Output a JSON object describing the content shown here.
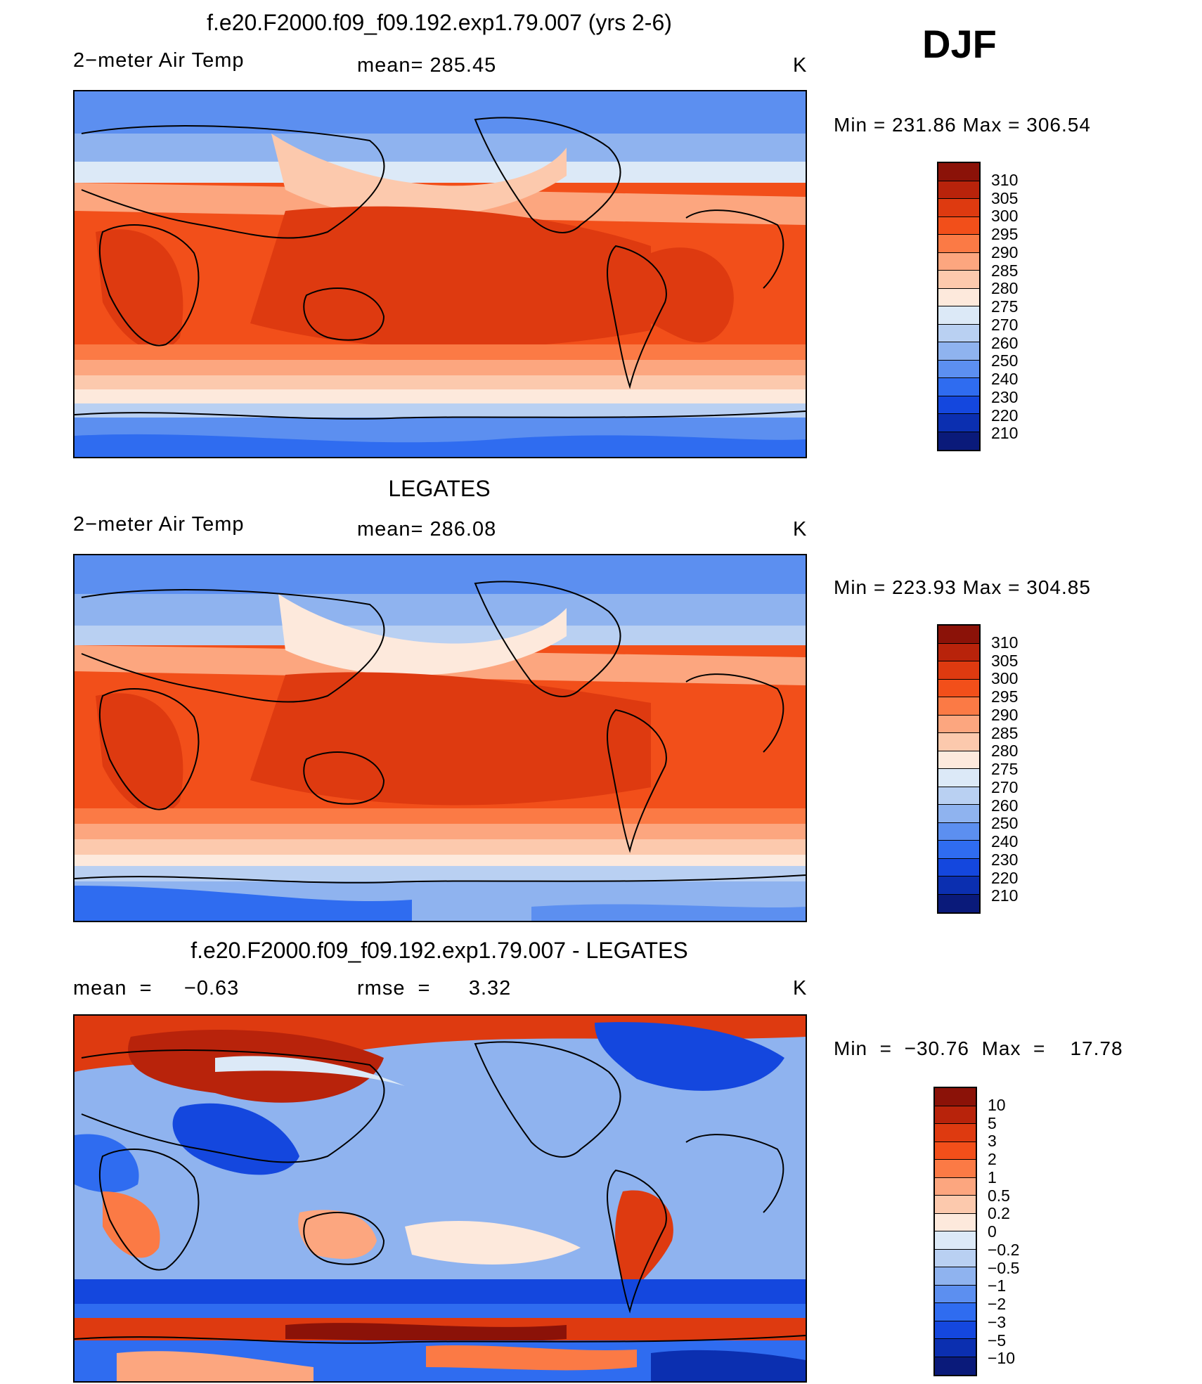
{
  "season": "DJF",
  "panels": [
    {
      "id": "model",
      "title": "f.e20.F2000.f09_f09.192.exp1.79.007 (yrs 2-6)",
      "left_label": "2−meter Air Temp",
      "center_label": "mean=  285.45",
      "units": "K",
      "minmax": "Min  =  231.86  Max  =  306.54",
      "colorbar": {
        "labels": [
          "310",
          "305",
          "300",
          "295",
          "290",
          "285",
          "280",
          "275",
          "270",
          "260",
          "250",
          "240",
          "230",
          "220",
          "210"
        ],
        "colors": [
          "#8b1208",
          "#b8230b",
          "#de3a10",
          "#f24f1a",
          "#fb7a45",
          "#fca67f",
          "#fcc9ad",
          "#fde9dc",
          "#dce9f7",
          "#b9d0f2",
          "#8fb3ef",
          "#5c8ff0",
          "#2f6cf0",
          "#1447de",
          "#0b2fb0",
          "#0a1a7a"
        ]
      }
    },
    {
      "id": "obs",
      "title": "LEGATES",
      "left_label": "2−meter Air Temp",
      "center_label": "mean=  286.08",
      "units": "K",
      "minmax": "Min  =  223.93  Max  =  304.85",
      "colorbar": {
        "labels": [
          "310",
          "305",
          "300",
          "295",
          "290",
          "285",
          "280",
          "275",
          "270",
          "260",
          "250",
          "240",
          "230",
          "220",
          "210"
        ],
        "colors": [
          "#8b1208",
          "#b8230b",
          "#de3a10",
          "#f24f1a",
          "#fb7a45",
          "#fca67f",
          "#fcc9ad",
          "#fde9dc",
          "#dce9f7",
          "#b9d0f2",
          "#8fb3ef",
          "#5c8ff0",
          "#2f6cf0",
          "#1447de",
          "#0b2fb0",
          "#0a1a7a"
        ]
      }
    },
    {
      "id": "diff",
      "title": "f.e20.F2000.f09_f09.192.exp1.79.007 - LEGATES",
      "left_label": "mean  =     −0.63",
      "center_label": "rmse  =      3.32",
      "units": "K",
      "minmax": "Min  =  −30.76  Max  =    17.78",
      "colorbar": {
        "labels": [
          "10",
          "5",
          "3",
          "2",
          "1",
          "0.5",
          "0.2",
          "0",
          "−0.2",
          "−0.5",
          "−1",
          "−2",
          "−3",
          "−5",
          "−10"
        ],
        "colors": [
          "#8b1208",
          "#b8230b",
          "#de3a10",
          "#f24f1a",
          "#fb7a45",
          "#fca67f",
          "#fcc9ad",
          "#fde9dc",
          "#dce9f7",
          "#b9d0f2",
          "#8fb3ef",
          "#5c8ff0",
          "#2f6cf0",
          "#1447de",
          "#0b2fb0",
          "#0a1a7a"
        ]
      }
    }
  ]
}
